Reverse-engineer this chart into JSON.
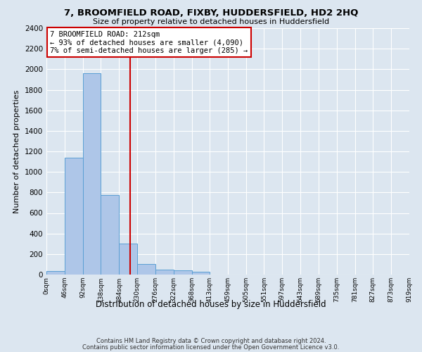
{
  "title": "7, BROOMFIELD ROAD, FIXBY, HUDDERSFIELD, HD2 2HQ",
  "subtitle": "Size of property relative to detached houses in Huddersfield",
  "xlabel": "Distribution of detached houses by size in Huddersfield",
  "ylabel": "Number of detached properties",
  "footer_line1": "Contains HM Land Registry data © Crown copyright and database right 2024.",
  "footer_line2": "Contains public sector information licensed under the Open Government Licence v3.0.",
  "bin_edges": [
    0,
    46,
    92,
    138,
    184,
    230,
    276,
    322,
    368,
    413,
    459,
    505,
    551,
    597,
    643,
    689,
    735,
    781,
    827,
    873,
    919
  ],
  "bar_heights": [
    35,
    1140,
    1960,
    775,
    300,
    105,
    45,
    38,
    25,
    0,
    0,
    0,
    0,
    0,
    0,
    0,
    0,
    0,
    0,
    0
  ],
  "bar_color": "#aec6e8",
  "bar_edge_color": "#5a9fd4",
  "property_size": 212,
  "vline_color": "#cc0000",
  "annotation_title": "7 BROOMFIELD ROAD: 212sqm",
  "annotation_line1": "← 93% of detached houses are smaller (4,090)",
  "annotation_line2": "7% of semi-detached houses are larger (285) →",
  "annotation_box_color": "#cc0000",
  "ylim": [
    0,
    2400
  ],
  "yticks": [
    0,
    200,
    400,
    600,
    800,
    1000,
    1200,
    1400,
    1600,
    1800,
    2000,
    2200,
    2400
  ],
  "background_color": "#dce6f0",
  "plot_background_color": "#dce6f0",
  "grid_color": "#ffffff",
  "tick_labels": [
    "0sqm",
    "46sqm",
    "92sqm",
    "138sqm",
    "184sqm",
    "230sqm",
    "276sqm",
    "322sqm",
    "368sqm",
    "413sqm",
    "459sqm",
    "505sqm",
    "551sqm",
    "597sqm",
    "643sqm",
    "689sqm",
    "735sqm",
    "781sqm",
    "827sqm",
    "873sqm",
    "919sqm"
  ]
}
